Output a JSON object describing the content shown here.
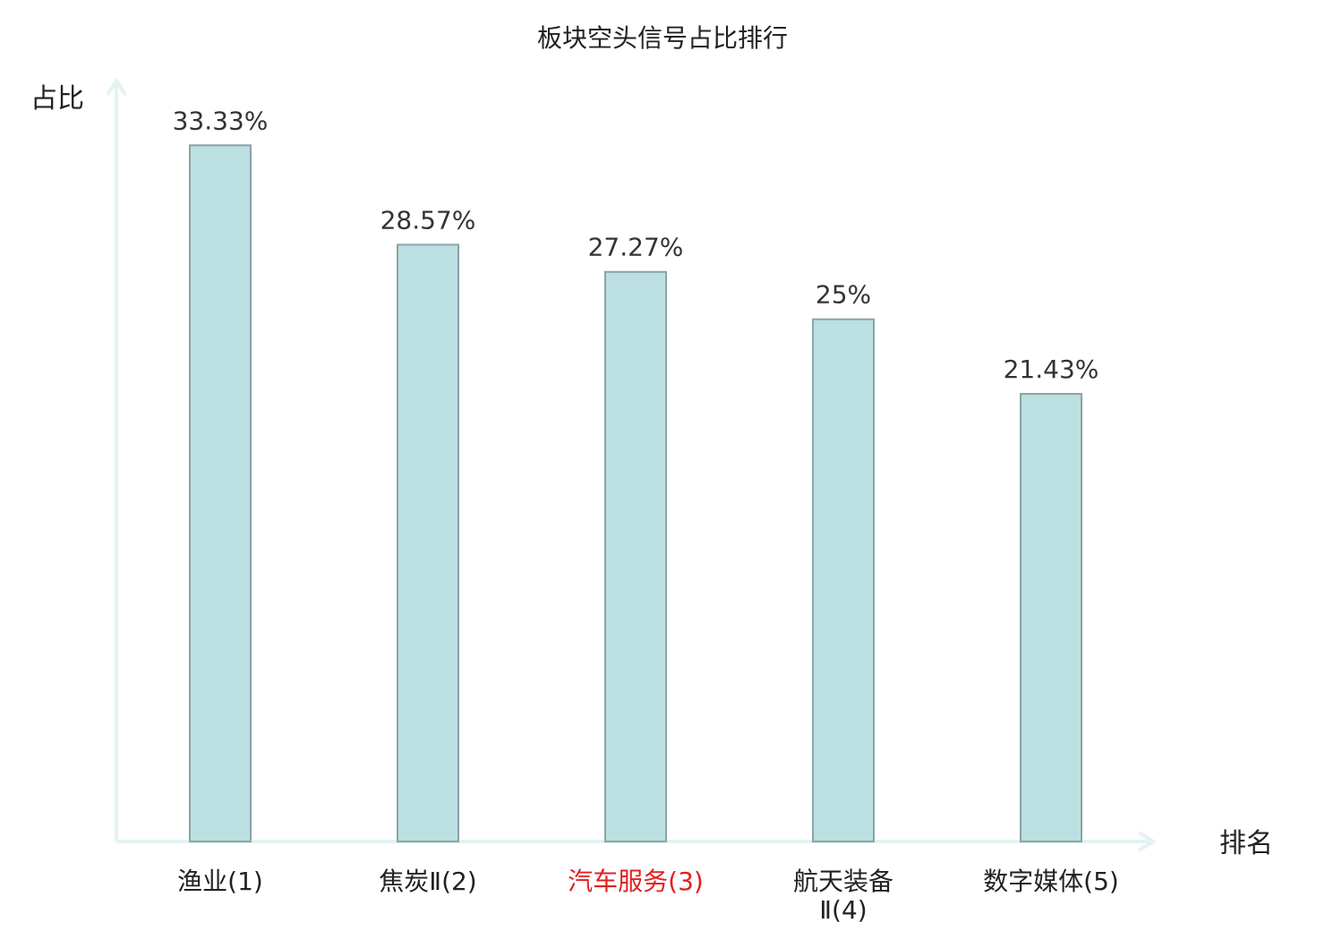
{
  "chart_data": {
    "type": "bar",
    "title": "板块空头信号占比排行",
    "ylabel": "占比",
    "xlabel": "排名",
    "categories": [
      {
        "name": "渔业",
        "rank": "(1)",
        "highlight": false
      },
      {
        "name": "焦炭Ⅱ",
        "rank": "(2)",
        "highlight": false
      },
      {
        "name": "汽车服务",
        "rank": "(3)",
        "highlight": true
      },
      {
        "name": "航天装备Ⅱ",
        "rank": "(4)",
        "highlight": false,
        "wrap": [
          "航天装备",
          "Ⅱ(4)"
        ]
      },
      {
        "name": "数字媒体",
        "rank": "(5)",
        "highlight": false
      }
    ],
    "values": [
      33.33,
      28.57,
      27.27,
      25,
      21.43
    ],
    "value_labels": [
      "33.33%",
      "28.57%",
      "27.27%",
      "25%",
      "21.43%"
    ],
    "ylim": [
      0,
      36.0
    ],
    "grid": false,
    "colors": {
      "bar_fill": "#bce0e1",
      "bar_stroke": "#8aa4a6",
      "axis": "#e3f3f1",
      "highlight_text": "#e02020",
      "text": "#222222"
    }
  }
}
